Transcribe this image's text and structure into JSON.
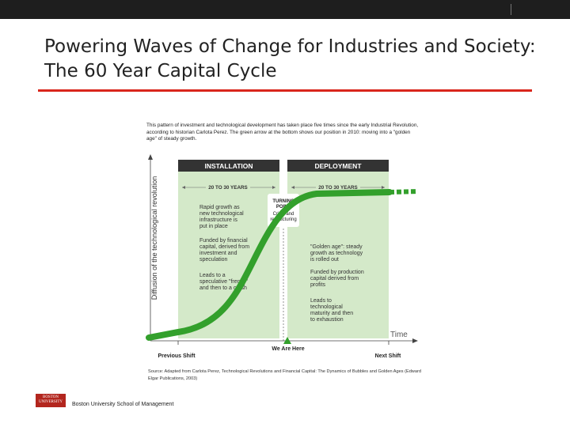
{
  "slide": {
    "title_line1": "Powering Waves of Change for Industries and Society:",
    "title_line2": "The 60 Year Capital Cycle",
    "footer": "Boston University School of Management",
    "logo_line1": "BOSTON",
    "logo_line2": "UNIVERSITY",
    "accent_color": "#d9261c"
  },
  "figure": {
    "intro": "This pattern of investment and technological development has taken place five times since the early Industrial Revolution, according to historian Carlota Perez. The green arrow at the bottom shows our position in 2010: moving into a \"golden age\" of steady growth.",
    "y_axis_label": "Diffusion of the technological revolution",
    "x_axis_label": "Time",
    "installation": {
      "header": "INSTALLATION",
      "years": "20 TO 30 YEARS",
      "notes": [
        [
          "Rapid growth as",
          "new technological",
          "infrastructure is",
          "put in place"
        ],
        [
          "Funded by financial",
          "capital, derived from",
          "investment and",
          "speculation"
        ],
        [
          "Leads to a",
          "speculative \"frenzy\"",
          "and then to a crash"
        ]
      ]
    },
    "deployment": {
      "header": "DEPLOYMENT",
      "years": "20 TO 30 YEARS",
      "notes": [
        [
          "\"Golden age\": steady",
          "growth as technology",
          "is rolled out"
        ],
        [
          "Funded by production",
          "capital derived from",
          "profits"
        ],
        [
          "Leads to",
          "technological",
          "maturity and then",
          "to exhaustion"
        ]
      ]
    },
    "turning_point": {
      "title_line1": "TURNING",
      "title_line2": "POINT",
      "sub_line1": "Crisis and",
      "sub_line2": "restructuring"
    },
    "markers": {
      "previous": "Previous Shift",
      "here": "We Are Here",
      "next": "Next Shift"
    },
    "source": "Source: Adapted from Carlota Perez, Technological Revolutions and Financial Capital: The Dynamics of Bubbles and Golden Ages (Edward Elgar Publications, 2003)",
    "colors": {
      "panel_green": "#d4e9c9",
      "curve_green": "#33a02c",
      "header_dark": "#333333"
    }
  }
}
